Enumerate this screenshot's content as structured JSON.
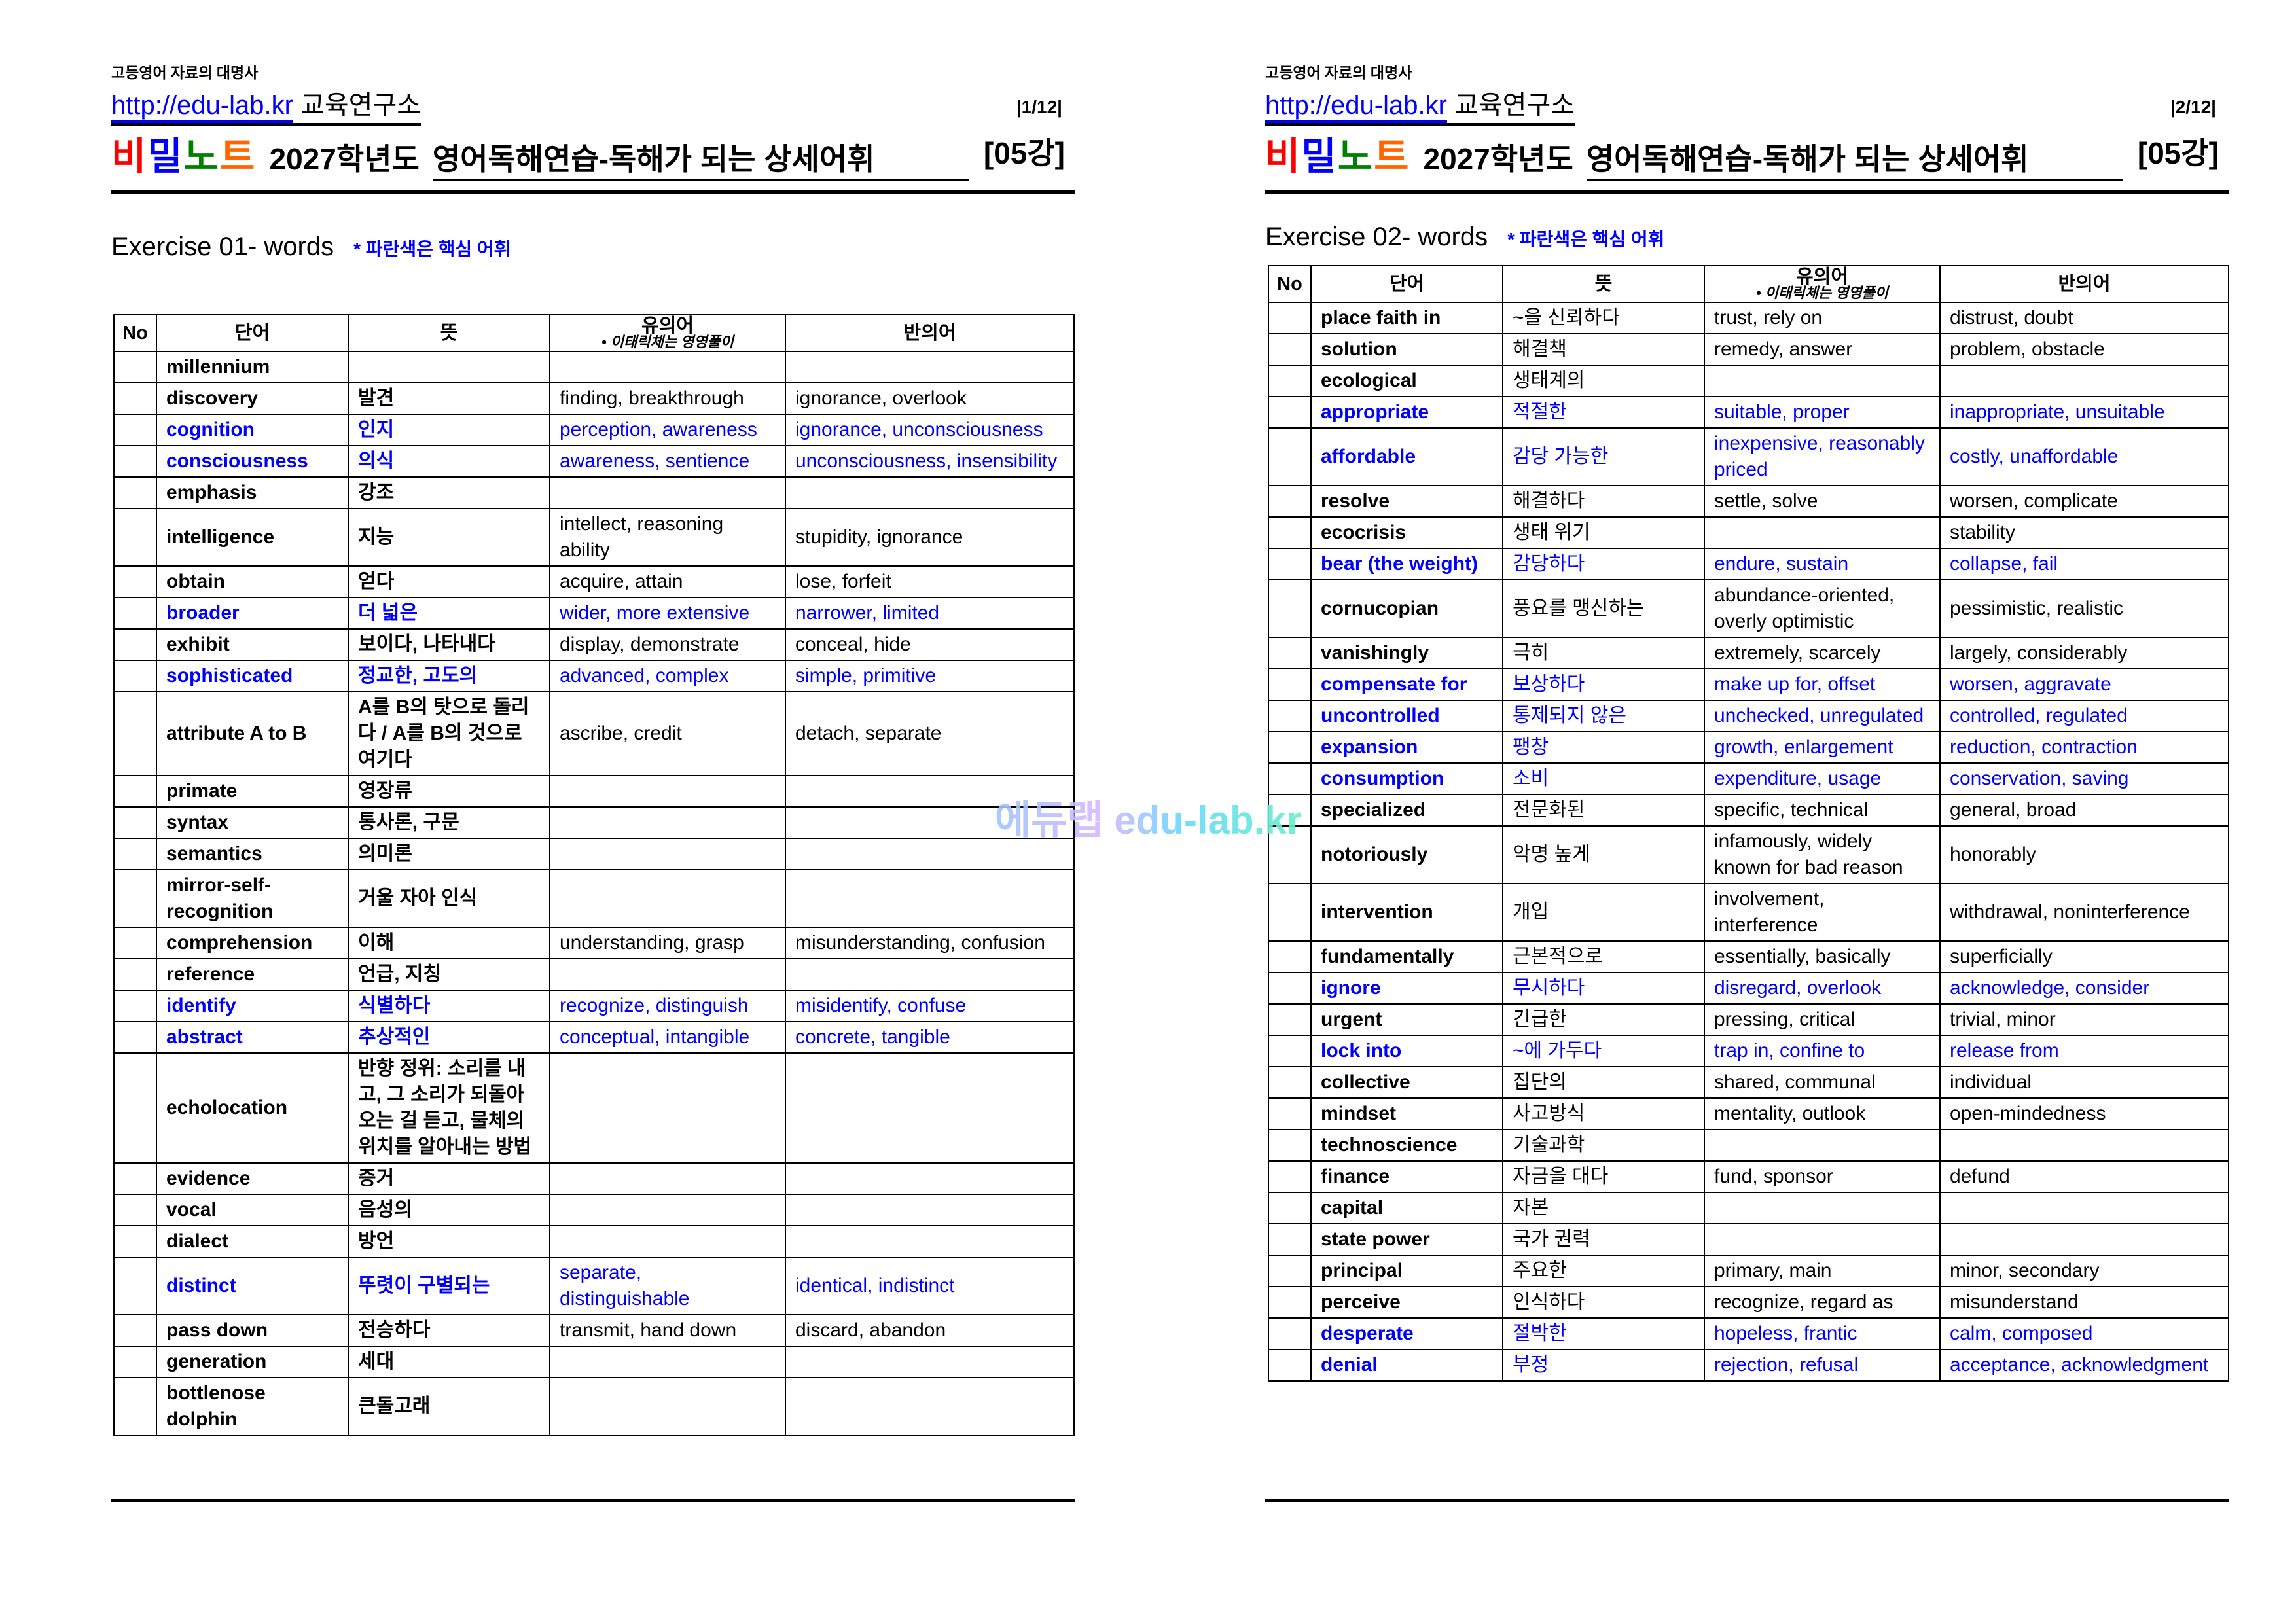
{
  "colors": {
    "accent_blue": "#0000ff",
    "brand": [
      "#ff0000",
      "#0000ff",
      "#008000",
      "#ff6600"
    ]
  },
  "watermark": "에듀랩 edu-lab.kr",
  "header": {
    "tagline": "고등영어 자료의 대명사",
    "url": "http://edu-lab.kr",
    "institute": "교육연구소",
    "brand": [
      "비",
      "밀",
      "노",
      "트"
    ],
    "year": "2027학년도",
    "subject": "영어독해연습-독해가 되는 상세어휘",
    "lesson": "[05강]"
  },
  "columns": {
    "no": "No",
    "word": "단어",
    "meaning": "뜻",
    "synonym": "유의어",
    "synonym_note": "• 이태릭체는 영영풀이",
    "antonym": "반의어"
  },
  "pages": [
    {
      "page_num": "|1/12|",
      "exercise": "Exercise 01- words",
      "note": "* 파란색은 핵심 어휘",
      "rows": [
        {
          "word": "millennium",
          "meaning": "",
          "synonym": "",
          "antonym": "",
          "key": false
        },
        {
          "word": "discovery",
          "meaning": "발견",
          "synonym": "finding, breakthrough",
          "antonym": "ignorance, overlook",
          "key": false
        },
        {
          "word": "cognition",
          "meaning": "인지",
          "synonym": "perception, awareness",
          "antonym": "ignorance, unconsciousness",
          "key": true
        },
        {
          "word": "consciousness",
          "meaning": "의식",
          "synonym": "awareness, sentience",
          "antonym": "unconsciousness, insensibility",
          "key": true
        },
        {
          "word": "emphasis",
          "meaning": "강조",
          "synonym": "",
          "antonym": "",
          "key": false
        },
        {
          "word": "intelligence",
          "meaning": "지능",
          "synonym": "intellect, reasoning ability",
          "antonym": "stupidity, ignorance",
          "key": false
        },
        {
          "word": "obtain",
          "meaning": "얻다",
          "synonym": "acquire, attain",
          "antonym": "lose, forfeit",
          "key": false
        },
        {
          "word": "broader",
          "meaning": "더 넓은",
          "synonym": "wider, more extensive",
          "antonym": "narrower, limited",
          "key": true
        },
        {
          "word": "exhibit",
          "meaning": "보이다, 나타내다",
          "synonym": "display, demonstrate",
          "antonym": "conceal, hide",
          "key": false
        },
        {
          "word": "sophisticated",
          "meaning": "정교한, 고도의",
          "synonym": "advanced, complex",
          "antonym": "simple, primitive",
          "key": true
        },
        {
          "word": "attribute A to B",
          "meaning": "A를 B의 탓으로 돌리다 / A를 B의 것으로 여기다",
          "synonym": "ascribe, credit",
          "antonym": "detach, separate",
          "key": false
        },
        {
          "word": "primate",
          "meaning": "영장류",
          "synonym": "",
          "antonym": "",
          "key": false
        },
        {
          "word": "syntax",
          "meaning": "통사론, 구문",
          "synonym": "",
          "antonym": "",
          "key": false
        },
        {
          "word": "semantics",
          "meaning": "의미론",
          "synonym": "",
          "antonym": "",
          "key": false
        },
        {
          "word": "mirror-self-recognition",
          "meaning": "거울 자아 인식",
          "synonym": "",
          "antonym": "",
          "key": false
        },
        {
          "word": "comprehension",
          "meaning": "이해",
          "synonym": "understanding, grasp",
          "antonym": "misunderstanding, confusion",
          "key": false
        },
        {
          "word": "reference",
          "meaning": "언급, 지칭",
          "synonym": "",
          "antonym": "",
          "key": false
        },
        {
          "word": "identify",
          "meaning": "식별하다",
          "synonym": "recognize, distinguish",
          "antonym": "misidentify, confuse",
          "key": true
        },
        {
          "word": "abstract",
          "meaning": "추상적인",
          "synonym": "conceptual, intangible",
          "antonym": "concrete, tangible",
          "key": true
        },
        {
          "word": "echolocation",
          "meaning": "반향 정위: 소리를 내고, 그 소리가 되돌아오는 걸 듣고, 물체의 위치를 알아내는 방법",
          "synonym": "",
          "antonym": "",
          "key": false
        },
        {
          "word": "evidence",
          "meaning": "증거",
          "synonym": "",
          "antonym": "",
          "key": false
        },
        {
          "word": "vocal",
          "meaning": "음성의",
          "synonym": "",
          "antonym": "",
          "key": false
        },
        {
          "word": "dialect",
          "meaning": "방언",
          "synonym": "",
          "antonym": "",
          "key": false
        },
        {
          "word": "distinct",
          "meaning": "뚜렷이 구별되는",
          "synonym": "separate, distinguishable",
          "antonym": "identical, indistinct",
          "key": true
        },
        {
          "word": "pass down",
          "meaning": "전승하다",
          "synonym": "transmit, hand down",
          "antonym": "discard, abandon",
          "key": false
        },
        {
          "word": "generation",
          "meaning": "세대",
          "synonym": "",
          "antonym": "",
          "key": false
        },
        {
          "word": "bottlenose dolphin",
          "meaning": "큰돌고래",
          "synonym": "",
          "antonym": "",
          "key": false
        }
      ]
    },
    {
      "page_num": "|2/12|",
      "exercise": "Exercise 02- words",
      "note": "* 파란색은 핵심 어휘",
      "rows": [
        {
          "word": "place faith in",
          "meaning": "~을 신뢰하다",
          "synonym": "trust, rely on",
          "antonym": "distrust, doubt",
          "key": false
        },
        {
          "word": "solution",
          "meaning": "해결책",
          "synonym": "remedy, answer",
          "antonym": "problem, obstacle",
          "key": false
        },
        {
          "word": "ecological",
          "meaning": "생태계의",
          "synonym": "",
          "antonym": "",
          "key": false
        },
        {
          "word": "appropriate",
          "meaning": "적절한",
          "synonym": "suitable, proper",
          "antonym": "inappropriate, unsuitable",
          "key": true
        },
        {
          "word": "affordable",
          "meaning": "감당 가능한",
          "synonym": "inexpensive, reasonably priced",
          "antonym": "costly, unaffordable",
          "key": true
        },
        {
          "word": "resolve",
          "meaning": "해결하다",
          "synonym": "settle, solve",
          "antonym": "worsen, complicate",
          "key": false
        },
        {
          "word": "ecocrisis",
          "meaning": "생태 위기",
          "synonym": "",
          "antonym": "stability",
          "key": false
        },
        {
          "word": "bear (the weight)",
          "meaning": "감당하다",
          "synonym": "endure, sustain",
          "antonym": "collapse, fail",
          "key": true
        },
        {
          "word": "cornucopian",
          "meaning": "풍요를 맹신하는",
          "synonym": "abundance-oriented, overly optimistic",
          "antonym": "pessimistic, realistic",
          "key": false
        },
        {
          "word": "vanishingly",
          "meaning": "극히",
          "synonym": "extremely, scarcely",
          "antonym": "largely, considerably",
          "key": false
        },
        {
          "word": "compensate for",
          "meaning": "보상하다",
          "synonym": "make up for, offset",
          "antonym": "worsen, aggravate",
          "key": true
        },
        {
          "word": "uncontrolled",
          "meaning": "통제되지 않은",
          "synonym": "unchecked, unregulated",
          "antonym": "controlled, regulated",
          "key": true
        },
        {
          "word": "expansion",
          "meaning": "팽창",
          "synonym": "growth, enlargement",
          "antonym": "reduction, contraction",
          "key": true
        },
        {
          "word": "consumption",
          "meaning": "소비",
          "synonym": "expenditure, usage",
          "antonym": "conservation, saving",
          "key": true
        },
        {
          "word": "specialized",
          "meaning": "전문화된",
          "synonym": "specific, technical",
          "antonym": "general, broad",
          "key": false
        },
        {
          "word": "notoriously",
          "meaning": "악명 높게",
          "synonym": "infamously, widely known for bad reason",
          "antonym": "honorably",
          "key": false
        },
        {
          "word": "intervention",
          "meaning": "개입",
          "synonym": "involvement, interference",
          "antonym": "withdrawal, noninterference",
          "key": false
        },
        {
          "word": "fundamentally",
          "meaning": "근본적으로",
          "synonym": "essentially, basically",
          "antonym": "superficially",
          "key": false
        },
        {
          "word": "ignore",
          "meaning": "무시하다",
          "synonym": "disregard, overlook",
          "antonym": "acknowledge, consider",
          "key": true
        },
        {
          "word": "urgent",
          "meaning": "긴급한",
          "synonym": "pressing, critical",
          "antonym": "trivial, minor",
          "key": false
        },
        {
          "word": "lock into",
          "meaning": "~에 가두다",
          "synonym": "trap in, confine to",
          "antonym": "release from",
          "key": true
        },
        {
          "word": "collective",
          "meaning": "집단의",
          "synonym": "shared, communal",
          "antonym": "individual",
          "key": false
        },
        {
          "word": "mindset",
          "meaning": "사고방식",
          "synonym": "mentality, outlook",
          "antonym": "open-mindedness",
          "key": false
        },
        {
          "word": "technoscience",
          "meaning": "기술과학",
          "synonym": "",
          "antonym": "",
          "key": false
        },
        {
          "word": "finance",
          "meaning": "자금을 대다",
          "synonym": "fund, sponsor",
          "antonym": "defund",
          "key": false
        },
        {
          "word": "capital",
          "meaning": "자본",
          "synonym": "",
          "antonym": "",
          "key": false
        },
        {
          "word": "state power",
          "meaning": "국가 권력",
          "synonym": "",
          "antonym": "",
          "key": false
        },
        {
          "word": "principal",
          "meaning": "주요한",
          "synonym": "primary, main",
          "antonym": "minor, secondary",
          "key": false
        },
        {
          "word": "perceive",
          "meaning": "인식하다",
          "synonym": "recognize, regard as",
          "antonym": "misunderstand",
          "key": false
        },
        {
          "word": "desperate",
          "meaning": "절박한",
          "synonym": "hopeless, frantic",
          "antonym": "calm, composed",
          "key": true
        },
        {
          "word": "denial",
          "meaning": "부정",
          "synonym": "rejection, refusal",
          "antonym": "acceptance, acknowledgment",
          "key": true
        }
      ]
    }
  ]
}
